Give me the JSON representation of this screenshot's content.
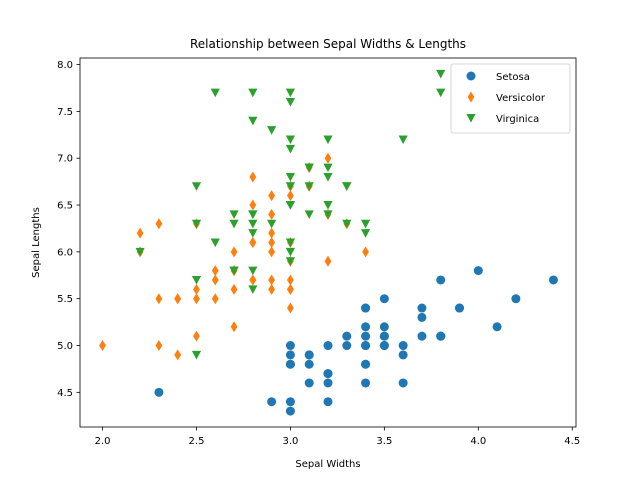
{
  "chart_data": {
    "type": "scatter",
    "title": "Relationship between Sepal Widths & Lengths",
    "xlabel": "Sepal Widths",
    "ylabel": "Sepal Lengths",
    "xlim": [
      1.88,
      4.52
    ],
    "ylim": [
      4.13,
      8.07
    ],
    "x_ticks": [
      "2.0",
      "2.5",
      "3.0",
      "3.5",
      "4.0",
      "4.5"
    ],
    "y_ticks": [
      "4.5",
      "5.0",
      "5.5",
      "6.0",
      "6.5",
      "7.0",
      "7.5",
      "8.0"
    ],
    "grid": false,
    "legend_position": "top-right",
    "series": [
      {
        "name": "Setosa",
        "marker": "circle",
        "color": "#1f77b4",
        "points": [
          [
            3.5,
            5.1
          ],
          [
            3.0,
            4.9
          ],
          [
            3.2,
            4.7
          ],
          [
            3.1,
            4.6
          ],
          [
            3.6,
            5.0
          ],
          [
            3.9,
            5.4
          ],
          [
            3.4,
            4.6
          ],
          [
            3.4,
            5.0
          ],
          [
            2.9,
            4.4
          ],
          [
            3.1,
            4.9
          ],
          [
            3.7,
            5.4
          ],
          [
            3.4,
            4.8
          ],
          [
            3.0,
            4.8
          ],
          [
            3.0,
            4.3
          ],
          [
            4.0,
            5.8
          ],
          [
            4.4,
            5.7
          ],
          [
            3.9,
            5.4
          ],
          [
            3.5,
            5.1
          ],
          [
            3.8,
            5.7
          ],
          [
            3.8,
            5.1
          ],
          [
            3.4,
            5.4
          ],
          [
            3.7,
            5.1
          ],
          [
            3.6,
            4.6
          ],
          [
            3.3,
            5.1
          ],
          [
            3.4,
            4.8
          ],
          [
            3.0,
            5.0
          ],
          [
            3.4,
            5.0
          ],
          [
            3.5,
            5.2
          ],
          [
            3.4,
            5.2
          ],
          [
            3.2,
            4.7
          ],
          [
            3.1,
            4.8
          ],
          [
            3.4,
            5.4
          ],
          [
            4.1,
            5.2
          ],
          [
            4.2,
            5.5
          ],
          [
            3.1,
            4.9
          ],
          [
            3.2,
            5.0
          ],
          [
            3.5,
            5.5
          ],
          [
            3.6,
            4.9
          ],
          [
            3.0,
            4.4
          ],
          [
            3.4,
            5.1
          ],
          [
            3.5,
            5.0
          ],
          [
            2.3,
            4.5
          ],
          [
            3.2,
            4.4
          ],
          [
            3.5,
            5.0
          ],
          [
            3.8,
            5.1
          ],
          [
            3.0,
            4.8
          ],
          [
            3.8,
            5.1
          ],
          [
            3.2,
            4.6
          ],
          [
            3.7,
            5.3
          ],
          [
            3.3,
            5.0
          ]
        ]
      },
      {
        "name": "Versicolor",
        "marker": "thin_diamond",
        "color": "#ff7f0e",
        "points": [
          [
            3.2,
            7.0
          ],
          [
            3.2,
            6.4
          ],
          [
            3.1,
            6.9
          ],
          [
            2.3,
            5.5
          ],
          [
            2.8,
            6.5
          ],
          [
            2.8,
            5.7
          ],
          [
            3.3,
            6.3
          ],
          [
            2.4,
            4.9
          ],
          [
            2.9,
            6.6
          ],
          [
            2.7,
            5.2
          ],
          [
            2.0,
            5.0
          ],
          [
            3.0,
            5.9
          ],
          [
            2.2,
            6.0
          ],
          [
            2.9,
            6.1
          ],
          [
            2.9,
            5.6
          ],
          [
            3.1,
            6.7
          ],
          [
            3.0,
            5.6
          ],
          [
            2.7,
            5.8
          ],
          [
            2.2,
            6.2
          ],
          [
            2.5,
            5.6
          ],
          [
            3.2,
            5.9
          ],
          [
            2.8,
            6.1
          ],
          [
            2.5,
            6.3
          ],
          [
            2.8,
            6.1
          ],
          [
            2.9,
            6.4
          ],
          [
            3.0,
            6.6
          ],
          [
            2.8,
            6.8
          ],
          [
            3.0,
            6.7
          ],
          [
            2.9,
            6.0
          ],
          [
            2.6,
            5.7
          ],
          [
            2.4,
            5.5
          ],
          [
            2.4,
            5.5
          ],
          [
            2.7,
            5.8
          ],
          [
            2.7,
            6.0
          ],
          [
            3.0,
            5.4
          ],
          [
            3.4,
            6.0
          ],
          [
            3.1,
            6.7
          ],
          [
            2.3,
            6.3
          ],
          [
            3.0,
            5.6
          ],
          [
            2.5,
            5.5
          ],
          [
            2.6,
            5.5
          ],
          [
            3.0,
            6.1
          ],
          [
            2.6,
            5.8
          ],
          [
            2.3,
            5.0
          ],
          [
            2.7,
            5.6
          ],
          [
            3.0,
            5.7
          ],
          [
            2.9,
            5.7
          ],
          [
            2.9,
            6.2
          ],
          [
            2.5,
            5.1
          ],
          [
            2.8,
            5.7
          ]
        ]
      },
      {
        "name": "Virginica",
        "marker": "triangle_down",
        "color": "#2ca02c",
        "points": [
          [
            3.3,
            6.3
          ],
          [
            2.7,
            5.8
          ],
          [
            3.0,
            7.1
          ],
          [
            2.9,
            6.3
          ],
          [
            3.0,
            6.5
          ],
          [
            3.0,
            7.6
          ],
          [
            2.5,
            4.9
          ],
          [
            2.9,
            7.3
          ],
          [
            2.5,
            6.7
          ],
          [
            3.6,
            7.2
          ],
          [
            3.2,
            6.5
          ],
          [
            2.7,
            6.4
          ],
          [
            3.0,
            6.8
          ],
          [
            2.5,
            5.7
          ],
          [
            2.8,
            5.8
          ],
          [
            3.2,
            6.4
          ],
          [
            3.0,
            6.5
          ],
          [
            3.8,
            7.7
          ],
          [
            2.6,
            7.7
          ],
          [
            2.2,
            6.0
          ],
          [
            3.2,
            6.9
          ],
          [
            2.8,
            5.6
          ],
          [
            2.8,
            7.7
          ],
          [
            2.7,
            6.3
          ],
          [
            3.3,
            6.7
          ],
          [
            3.2,
            7.2
          ],
          [
            2.8,
            6.2
          ],
          [
            3.0,
            6.1
          ],
          [
            2.8,
            6.4
          ],
          [
            3.0,
            7.2
          ],
          [
            2.8,
            7.4
          ],
          [
            3.8,
            7.9
          ],
          [
            2.8,
            6.4
          ],
          [
            2.8,
            6.3
          ],
          [
            2.6,
            6.1
          ],
          [
            3.0,
            7.7
          ],
          [
            3.4,
            6.3
          ],
          [
            3.1,
            6.4
          ],
          [
            3.0,
            6.0
          ],
          [
            3.1,
            6.9
          ],
          [
            3.1,
            6.7
          ],
          [
            3.1,
            6.9
          ],
          [
            2.7,
            5.8
          ],
          [
            3.2,
            6.8
          ],
          [
            3.3,
            6.7
          ],
          [
            3.0,
            6.7
          ],
          [
            2.5,
            6.3
          ],
          [
            3.0,
            6.5
          ],
          [
            3.4,
            6.2
          ],
          [
            3.0,
            5.9
          ]
        ]
      }
    ]
  }
}
